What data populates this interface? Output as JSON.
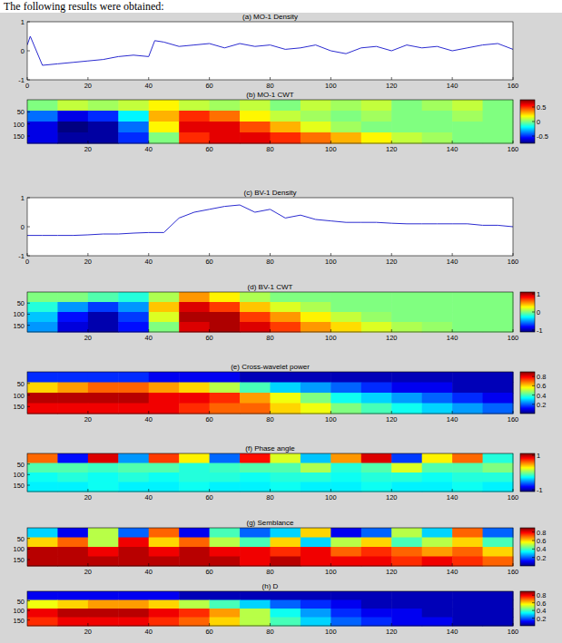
{
  "caption": "The following results were obtained:",
  "chart_data": [
    {
      "type": "line",
      "title": "(a) MO-1 Density",
      "color": "#2b2bd0",
      "x": [
        0,
        1,
        5,
        10,
        15,
        20,
        25,
        30,
        35,
        40,
        42,
        45,
        50,
        55,
        60,
        65,
        70,
        75,
        80,
        85,
        90,
        95,
        100,
        105,
        110,
        115,
        120,
        125,
        130,
        135,
        140,
        145,
        150,
        155,
        160
      ],
      "values": [
        0.2,
        0.5,
        -0.5,
        -0.45,
        -0.4,
        -0.35,
        -0.3,
        -0.2,
        -0.15,
        -0.2,
        0.35,
        0.3,
        0.15,
        0.2,
        0.25,
        0.1,
        0.25,
        0.15,
        0.2,
        0.05,
        0.1,
        0.2,
        0.0,
        -0.1,
        0.1,
        0.15,
        0.0,
        0.2,
        0.1,
        0.15,
        0.0,
        0.1,
        0.2,
        0.25,
        0.05
      ],
      "xlim": [
        0,
        160
      ],
      "ylim": [
        -1,
        1
      ],
      "xticks": [
        0,
        20,
        40,
        60,
        80,
        100,
        120,
        140,
        160
      ],
      "yticks": [
        -1,
        0,
        1
      ]
    },
    {
      "type": "heatmap",
      "title": "(b) MO-1 CWT",
      "xlim": [
        0,
        160
      ],
      "ylim": [
        0,
        180
      ],
      "xticks": [
        20,
        40,
        60,
        80,
        100,
        120,
        140,
        160
      ],
      "yticks": [
        50,
        100,
        150
      ],
      "cells": [
        [
          0,
          0.1,
          0.05,
          0.1,
          0.2,
          0.1,
          0.05,
          0.1,
          0.0,
          0.1,
          0.05,
          0.1,
          0.0,
          0.05,
          0.1,
          0.0
        ],
        [
          -0.4,
          -0.6,
          -0.5,
          -0.2,
          0.3,
          0.5,
          0.4,
          0.2,
          0.1,
          0.05,
          0,
          0.05,
          0,
          0,
          0.05,
          0
        ],
        [
          -0.6,
          -0.75,
          -0.7,
          -0.4,
          0.2,
          0.6,
          0.6,
          0.45,
          0.3,
          0.15,
          0.05,
          0,
          0,
          0,
          0,
          0
        ],
        [
          -0.6,
          -0.7,
          -0.7,
          -0.5,
          0.0,
          0.5,
          0.6,
          0.6,
          0.5,
          0.4,
          0.3,
          0.2,
          0.1,
          0.05,
          0,
          0
        ]
      ],
      "color_range": [
        -0.75,
        0.75
      ],
      "color_ticks": [
        0.5,
        0,
        -0.5
      ]
    },
    {
      "type": "line",
      "title": "(c) BV-1 Density",
      "color": "#2b2bd0",
      "x": [
        0,
        5,
        10,
        15,
        20,
        25,
        30,
        35,
        40,
        45,
        50,
        55,
        60,
        65,
        70,
        75,
        80,
        85,
        90,
        95,
        100,
        105,
        110,
        115,
        120,
        125,
        130,
        135,
        140,
        145,
        150,
        155,
        160
      ],
      "values": [
        -0.3,
        -0.3,
        -0.3,
        -0.3,
        -0.28,
        -0.25,
        -0.25,
        -0.22,
        -0.2,
        -0.2,
        0.3,
        0.5,
        0.6,
        0.7,
        0.75,
        0.5,
        0.6,
        0.3,
        0.4,
        0.25,
        0.2,
        0.15,
        0.15,
        0.15,
        0.12,
        0.1,
        0.1,
        0.1,
        0.1,
        0.1,
        0.05,
        0.05,
        0.0
      ],
      "xlim": [
        0,
        160
      ],
      "ylim": [
        -1,
        1
      ],
      "xticks": [
        0,
        20,
        40,
        60,
        80,
        100,
        120,
        140,
        160
      ],
      "yticks": [
        -1,
        0,
        1
      ]
    },
    {
      "type": "heatmap",
      "title": "(d) BV-1 CWT",
      "xlim": [
        0,
        160
      ],
      "ylim": [
        0,
        180
      ],
      "xticks": [
        20,
        40,
        60,
        80,
        100,
        120,
        140,
        160
      ],
      "yticks": [
        50,
        100,
        150
      ],
      "cells": [
        [
          0,
          0,
          -0.1,
          -0.2,
          0.1,
          0.5,
          0.3,
          0.1,
          0,
          0,
          0,
          0,
          0,
          0,
          0,
          0
        ],
        [
          -0.2,
          -0.5,
          -0.7,
          -0.5,
          0.4,
          0.9,
          0.7,
          0.4,
          0.2,
          0.1,
          0,
          0,
          0,
          0,
          0,
          0
        ],
        [
          -0.4,
          -0.8,
          -1,
          -0.7,
          0.2,
          1,
          1,
          0.7,
          0.5,
          0.3,
          0.15,
          0.05,
          0,
          0,
          0,
          0
        ],
        [
          -0.5,
          -0.9,
          -1,
          -0.8,
          0,
          0.9,
          1,
          0.9,
          0.7,
          0.5,
          0.35,
          0.2,
          0.1,
          0.05,
          0,
          0
        ]
      ],
      "color_range": [
        -1.1,
        1.1
      ],
      "color_ticks": [
        1,
        0,
        -1
      ]
    },
    {
      "type": "heatmap",
      "title": "(e) Cross-wavelet power",
      "xlim": [
        0,
        160
      ],
      "ylim": [
        0,
        180
      ],
      "xticks": [
        20,
        40,
        60,
        80,
        100,
        120,
        140,
        160
      ],
      "yticks": [
        50,
        100,
        150
      ],
      "cells": [
        [
          0.15,
          0.15,
          0.15,
          0.15,
          0.1,
          0.1,
          0.1,
          0.05,
          0.05,
          0.05,
          0.05,
          0.05,
          0.05,
          0.05,
          0.05,
          0.05
        ],
        [
          0.6,
          0.65,
          0.7,
          0.7,
          0.65,
          0.6,
          0.5,
          0.4,
          0.3,
          0.25,
          0.2,
          0.15,
          0.1,
          0.1,
          0.05,
          0.05
        ],
        [
          0.85,
          0.85,
          0.85,
          0.85,
          0.8,
          0.8,
          0.75,
          0.65,
          0.55,
          0.45,
          0.35,
          0.3,
          0.25,
          0.2,
          0.15,
          0.1
        ],
        [
          0.8,
          0.8,
          0.8,
          0.8,
          0.8,
          0.75,
          0.7,
          0.7,
          0.6,
          0.55,
          0.45,
          0.4,
          0.35,
          0.3,
          0.25,
          0.2
        ]
      ],
      "color_range": [
        0,
        0.9
      ],
      "color_ticks": [
        0.8,
        0.6,
        0.4,
        0.2
      ]
    },
    {
      "type": "heatmap",
      "title": "(f) Phase angle",
      "xlim": [
        0,
        160
      ],
      "ylim": [
        0,
        180
      ],
      "xticks": [
        20,
        40,
        60,
        80,
        100,
        120,
        140,
        160
      ],
      "yticks": [
        50,
        100,
        150
      ],
      "cells": [
        [
          0.6,
          -0.8,
          0.9,
          -0.5,
          0.7,
          0.3,
          -0.6,
          0.8,
          0.2,
          -0.4,
          0.5,
          0.9,
          -0.7,
          0.3,
          0.6,
          -0.2
        ],
        [
          -0.1,
          -0.1,
          -0.15,
          -0.1,
          -0.1,
          -0.2,
          -0.15,
          -0.1,
          -0.1,
          0.1,
          -0.2,
          -0.1,
          0.2,
          -0.1,
          -0.1,
          0
        ],
        [
          -0.25,
          -0.2,
          -0.25,
          -0.2,
          -0.25,
          -0.2,
          -0.2,
          -0.25,
          -0.2,
          -0.2,
          -0.25,
          -0.2,
          -0.2,
          -0.25,
          -0.2,
          -0.2
        ],
        [
          -0.3,
          -0.3,
          -0.25,
          -0.3,
          -0.3,
          -0.25,
          -0.3,
          -0.3,
          -0.25,
          -0.3,
          -0.3,
          -0.25,
          -0.3,
          -0.3,
          -0.25,
          -0.3
        ]
      ],
      "color_range": [
        -1.1,
        1.1
      ],
      "color_ticks": [
        1,
        -1
      ]
    },
    {
      "type": "heatmap",
      "title": "(g) Semblance",
      "xlim": [
        0,
        160
      ],
      "ylim": [
        0,
        180
      ],
      "xticks": [
        20,
        40,
        60,
        80,
        100,
        120,
        140,
        160
      ],
      "yticks": [
        50,
        100,
        150
      ],
      "cells": [
        [
          0.3,
          0.1,
          0.5,
          0.2,
          0.7,
          0.1,
          0.4,
          0.2,
          0.3,
          0.6,
          0.1,
          0.2,
          0.5,
          0.3,
          0.7,
          0.2
        ],
        [
          0.6,
          0.7,
          0.5,
          0.8,
          0.6,
          0.7,
          0.5,
          0.4,
          0.6,
          0.3,
          0.5,
          0.6,
          0.4,
          0.5,
          0.6,
          0.4
        ],
        [
          0.85,
          0.85,
          0.8,
          0.85,
          0.8,
          0.85,
          0.8,
          0.8,
          0.75,
          0.8,
          0.7,
          0.75,
          0.7,
          0.65,
          0.7,
          0.6
        ],
        [
          0.85,
          0.85,
          0.85,
          0.85,
          0.85,
          0.85,
          0.85,
          0.8,
          0.85,
          0.8,
          0.8,
          0.8,
          0.75,
          0.8,
          0.75,
          0.7
        ]
      ],
      "color_range": [
        0,
        0.9
      ],
      "color_ticks": [
        0.8,
        0.6,
        0.4,
        0.2
      ]
    },
    {
      "type": "heatmap",
      "title": "(h) D",
      "xlim": [
        0,
        160
      ],
      "ylim": [
        0,
        180
      ],
      "xticks": [
        20,
        40,
        60,
        80,
        100,
        120,
        140,
        160
      ],
      "yticks": [
        50,
        100,
        150
      ],
      "cells": [
        [
          0.1,
          0.1,
          0.1,
          0.1,
          0.1,
          0.05,
          0.05,
          0.05,
          0.05,
          0.05,
          0.05,
          0.05,
          0.05,
          0.05,
          0.05,
          0.05
        ],
        [
          0.55,
          0.6,
          0.65,
          0.65,
          0.6,
          0.5,
          0.4,
          0.3,
          0.2,
          0.15,
          0.1,
          0.05,
          0.05,
          0.05,
          0.05,
          0.05
        ],
        [
          0.8,
          0.85,
          0.85,
          0.85,
          0.8,
          0.75,
          0.65,
          0.5,
          0.35,
          0.25,
          0.15,
          0.1,
          0.1,
          0.05,
          0.05,
          0.05
        ],
        [
          0.75,
          0.8,
          0.8,
          0.8,
          0.75,
          0.7,
          0.6,
          0.5,
          0.4,
          0.3,
          0.2,
          0.15,
          0.1,
          0.1,
          0.05,
          0.05
        ]
      ],
      "color_range": [
        0,
        0.9
      ],
      "color_ticks": [
        0.8,
        0.6,
        0.4,
        0.2
      ]
    }
  ]
}
